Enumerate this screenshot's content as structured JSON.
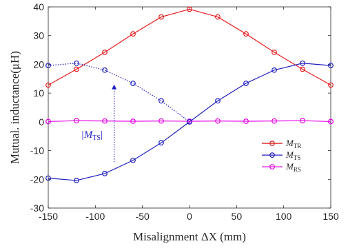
{
  "chart_data": {
    "type": "line",
    "xlabel": "Misalignment ΔX (mm)",
    "ylabel": "Mutual. inductance(μH)",
    "xlim": [
      -150,
      150
    ],
    "ylim": [
      -30,
      40
    ],
    "xticks": [
      -150,
      -100,
      -50,
      0,
      50,
      100,
      150
    ],
    "yticks": [
      -30,
      -20,
      -10,
      0,
      10,
      20,
      30,
      40
    ],
    "x": [
      -150,
      -120,
      -90,
      -60,
      -30,
      0,
      30,
      60,
      90,
      120,
      150
    ],
    "series": [
      {
        "name": "M_TR",
        "label": "M",
        "sub": "TR",
        "color": "#e41a1c",
        "style": "solid",
        "values": [
          12.8,
          18.3,
          24.2,
          30.6,
          36.5,
          39.2,
          36.5,
          30.6,
          24.2,
          18.3,
          12.8
        ]
      },
      {
        "name": "M_TS",
        "label": "M",
        "sub": "TS",
        "color": "#1f1fbf",
        "style": "solid",
        "values": [
          -19.6,
          -20.4,
          -18.0,
          -13.4,
          -7.3,
          0.0,
          7.3,
          13.4,
          18.0,
          20.4,
          19.6
        ]
      },
      {
        "name": "M_RS",
        "label": "M",
        "sub": "RS",
        "color": "#e600e6",
        "style": "solid",
        "values": [
          0.1,
          0.4,
          0.3,
          0.2,
          0.3,
          0.2,
          0.3,
          0.2,
          0.3,
          0.4,
          0.1
        ]
      },
      {
        "name": "|M_TS|",
        "color": "#1f1fbf",
        "style": "dotted",
        "in_legend": false,
        "values": [
          19.6,
          20.4,
          18.0,
          13.4,
          7.3,
          0.0,
          null,
          null,
          null,
          null,
          null
        ]
      }
    ],
    "annotation": {
      "text_prefix": "|M",
      "text_sub": "TS",
      "text_suffix": "|",
      "arrow_x": -80,
      "arrow_from_y": -14,
      "arrow_to_y": 13
    },
    "legend": "lower-right",
    "grid": false
  }
}
